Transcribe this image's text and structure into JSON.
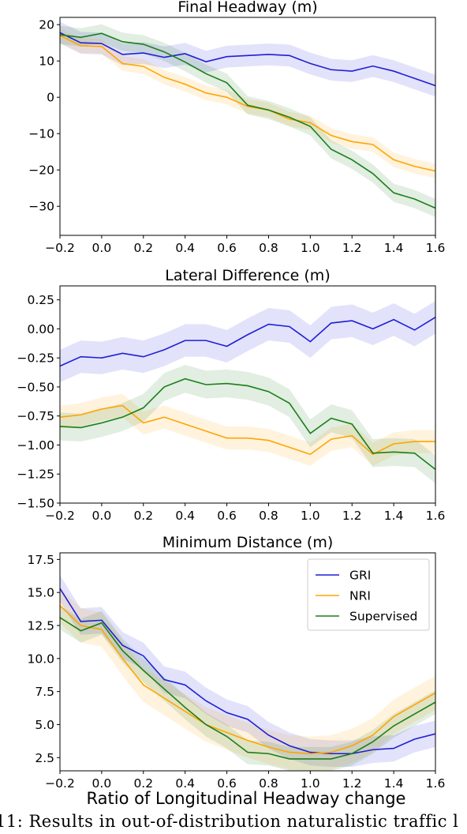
{
  "figure": {
    "xlabel": "Ratio of Longitudinal Headway change",
    "caption": "11: Results in out-of-distribution naturalistic traffic l",
    "colors": {
      "GRI": "#1f1fd6",
      "NRI": "#ffa500",
      "Supervised": "#1a7f1a"
    }
  },
  "chart_data": [
    {
      "type": "line",
      "title": "Final Headway (m)",
      "xlim": [
        -0.2,
        1.6
      ],
      "ylim": [
        -38,
        22
      ],
      "xticks": [
        "−0.2",
        "0.0",
        "0.2",
        "0.4",
        "0.6",
        "0.8",
        "1.0",
        "1.2",
        "1.4",
        "1.6"
      ],
      "yticks": [
        "20",
        "10",
        "0",
        "−10",
        "−20",
        "−30"
      ],
      "ytick_values": [
        20,
        10,
        0,
        -10,
        -20,
        -30
      ],
      "x": [
        -0.2,
        -0.1,
        0.0,
        0.1,
        0.2,
        0.3,
        0.4,
        0.5,
        0.6,
        0.7,
        0.8,
        0.9,
        1.0,
        1.1,
        1.2,
        1.3,
        1.4,
        1.5,
        1.6
      ],
      "series": [
        {
          "name": "GRI",
          "band": 3,
          "values": [
            17.8,
            15.0,
            14.8,
            11.8,
            12.2,
            11.0,
            12.0,
            9.8,
            11.2,
            11.5,
            11.8,
            11.5,
            9.3,
            7.6,
            7.2,
            8.6,
            7.2,
            5.2,
            3.2
          ]
        },
        {
          "name": "NRI",
          "band": 2,
          "values": [
            17.0,
            14.2,
            14.0,
            9.3,
            8.5,
            5.5,
            3.6,
            1.2,
            0.0,
            -2.5,
            -3.5,
            -6.0,
            -7.0,
            -10.5,
            -12.2,
            -13.0,
            -17.2,
            -19.0,
            -20.3
          ]
        },
        {
          "name": "Supervised",
          "band": 2.5,
          "values": [
            17.2,
            16.5,
            17.6,
            15.3,
            14.6,
            12.5,
            9.7,
            6.5,
            4.0,
            -2.2,
            -3.5,
            -5.5,
            -8.0,
            -14.3,
            -17.2,
            -21.0,
            -26.3,
            -28.0,
            -30.5
          ]
        }
      ]
    },
    {
      "type": "line",
      "title": "Lateral Difference (m)",
      "xlim": [
        -0.2,
        1.6
      ],
      "ylim": [
        -1.5,
        0.37
      ],
      "xticks": [
        "−0.2",
        "0.0",
        "0.2",
        "0.4",
        "0.6",
        "0.8",
        "1.0",
        "1.2",
        "1.4",
        "1.6"
      ],
      "yticks": [
        "0.25",
        "0.00",
        "−0.25",
        "−0.50",
        "−0.75",
        "−1.00",
        "−1.25",
        "−1.50"
      ],
      "ytick_values": [
        0.25,
        0.0,
        -0.25,
        -0.5,
        -0.75,
        -1.0,
        -1.25,
        -1.5
      ],
      "x": [
        -0.2,
        -0.1,
        0.0,
        0.1,
        0.2,
        0.3,
        0.4,
        0.5,
        0.6,
        0.7,
        0.8,
        0.9,
        1.0,
        1.1,
        1.2,
        1.3,
        1.4,
        1.5,
        1.6
      ],
      "series": [
        {
          "name": "GRI",
          "band": 0.14,
          "values": [
            -0.32,
            -0.24,
            -0.25,
            -0.21,
            -0.24,
            -0.18,
            -0.1,
            -0.1,
            -0.15,
            -0.05,
            0.04,
            0.02,
            -0.11,
            0.05,
            0.07,
            0.0,
            0.08,
            -0.01,
            0.1
          ]
        },
        {
          "name": "NRI",
          "band": 0.1,
          "values": [
            -0.76,
            -0.74,
            -0.69,
            -0.66,
            -0.81,
            -0.76,
            -0.82,
            -0.88,
            -0.94,
            -0.94,
            -0.96,
            -1.02,
            -1.08,
            -0.95,
            -0.92,
            -1.08,
            -0.99,
            -0.97,
            -0.97
          ]
        },
        {
          "name": "Supervised",
          "band": 0.12,
          "values": [
            -0.84,
            -0.85,
            -0.81,
            -0.76,
            -0.68,
            -0.5,
            -0.43,
            -0.48,
            -0.47,
            -0.49,
            -0.54,
            -0.64,
            -0.9,
            -0.77,
            -0.82,
            -1.07,
            -1.06,
            -1.07,
            -1.21
          ]
        }
      ]
    },
    {
      "type": "line",
      "title": "Minimum Distance (m)",
      "xlim": [
        -0.2,
        1.6
      ],
      "ylim": [
        1.5,
        18.0
      ],
      "xticks": [
        "−0.2",
        "0.0",
        "0.2",
        "0.4",
        "0.6",
        "0.8",
        "1.0",
        "1.2",
        "1.4",
        "1.6"
      ],
      "yticks": [
        "17.5",
        "15.0",
        "12.5",
        "10.0",
        "7.5",
        "5.0",
        "2.5"
      ],
      "ytick_values": [
        17.5,
        15.0,
        12.5,
        10.0,
        7.5,
        5.0,
        2.5
      ],
      "legend": {
        "placement": "upper right",
        "entries": [
          "GRI",
          "NRI",
          "Supervised"
        ]
      },
      "x": [
        -0.2,
        -0.1,
        0.0,
        0.1,
        0.2,
        0.3,
        0.4,
        0.5,
        0.6,
        0.7,
        0.8,
        0.9,
        1.0,
        1.1,
        1.2,
        1.3,
        1.4,
        1.5,
        1.6
      ],
      "series": [
        {
          "name": "GRI",
          "band": 1.0,
          "values": [
            15.3,
            12.8,
            12.9,
            11.0,
            10.2,
            8.4,
            8.0,
            6.8,
            5.9,
            5.4,
            4.2,
            3.4,
            2.9,
            2.8,
            2.8,
            3.1,
            3.2,
            3.9,
            4.3
          ]
        },
        {
          "name": "NRI",
          "band": 1.3,
          "values": [
            14.0,
            12.5,
            12.2,
            10.0,
            8.0,
            7.0,
            6.0,
            5.0,
            4.4,
            3.8,
            3.3,
            2.9,
            2.8,
            2.9,
            3.4,
            4.2,
            5.6,
            6.5,
            7.4
          ]
        },
        {
          "name": "Supervised",
          "band": 0.9,
          "values": [
            13.1,
            12.1,
            12.7,
            10.6,
            9.1,
            7.7,
            6.3,
            5.0,
            4.1,
            2.9,
            2.8,
            2.4,
            2.4,
            2.4,
            2.8,
            3.7,
            4.9,
            5.8,
            6.7
          ]
        }
      ]
    }
  ]
}
